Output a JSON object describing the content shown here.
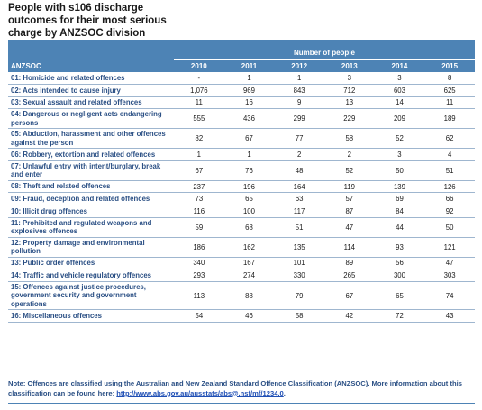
{
  "title": "People with s106 discharge outcomes for their most serious charge by ANZSOC division",
  "table": {
    "group_header": "Number of people",
    "category_header": "ANZSOC",
    "years": [
      "2010",
      "2011",
      "2012",
      "2013",
      "2014",
      "2015"
    ],
    "rows": [
      {
        "label": "01: Homicide and related offences",
        "values": [
          "-",
          "1",
          "1",
          "3",
          "3",
          "8"
        ]
      },
      {
        "label": "02: Acts intended to cause injury",
        "values": [
          "1,076",
          "969",
          "843",
          "712",
          "603",
          "625"
        ]
      },
      {
        "label": "03: Sexual assault and related offences",
        "values": [
          "11",
          "16",
          "9",
          "13",
          "14",
          "11"
        ]
      },
      {
        "label": "04: Dangerous or negligent acts endangering persons",
        "values": [
          "555",
          "436",
          "299",
          "229",
          "209",
          "189"
        ]
      },
      {
        "label": "05: Abduction, harassment and other offences against the person",
        "values": [
          "82",
          "67",
          "77",
          "58",
          "52",
          "62"
        ]
      },
      {
        "label": "06: Robbery, extortion and related offences",
        "values": [
          "1",
          "1",
          "2",
          "2",
          "3",
          "4"
        ]
      },
      {
        "label": "07: Unlawful entry with intent/burglary, break and enter",
        "values": [
          "67",
          "76",
          "48",
          "52",
          "50",
          "51"
        ]
      },
      {
        "label": "08: Theft and related offences",
        "values": [
          "237",
          "196",
          "164",
          "119",
          "139",
          "126"
        ]
      },
      {
        "label": "09: Fraud, deception and related offences",
        "values": [
          "73",
          "65",
          "63",
          "57",
          "69",
          "66"
        ]
      },
      {
        "label": "10: Illicit drug offences",
        "values": [
          "116",
          "100",
          "117",
          "87",
          "84",
          "92"
        ]
      },
      {
        "label": "11: Prohibited and regulated weapons and explosives offences",
        "values": [
          "59",
          "68",
          "51",
          "47",
          "44",
          "50"
        ]
      },
      {
        "label": "12: Property damage and environmental pollution",
        "values": [
          "186",
          "162",
          "135",
          "114",
          "93",
          "121"
        ]
      },
      {
        "label": "13: Public order offences",
        "values": [
          "340",
          "167",
          "101",
          "89",
          "56",
          "47"
        ]
      },
      {
        "label": "14: Traffic and vehicle regulatory offences",
        "values": [
          "293",
          "274",
          "330",
          "265",
          "300",
          "303"
        ]
      },
      {
        "label": "15: Offences against justice procedures, government security and government operations",
        "values": [
          "113",
          "88",
          "79",
          "67",
          "65",
          "74"
        ]
      },
      {
        "label": "16: Miscellaneous offences",
        "values": [
          "54",
          "46",
          "58",
          "42",
          "72",
          "43"
        ]
      }
    ]
  },
  "note": {
    "text": "Note: Offences are classified using the Australian and New Zealand Standard Offence Classification (ANZSOC). More information about this classification can be found here: ",
    "link": "http://www.abs.gov.au/ausstats/abs@.nsf/mf/1234.0",
    "suffix": "."
  },
  "colors": {
    "header_bg": "#4d83b5",
    "label_text": "#2a4f84",
    "row_rule": "#9fb6cf"
  }
}
